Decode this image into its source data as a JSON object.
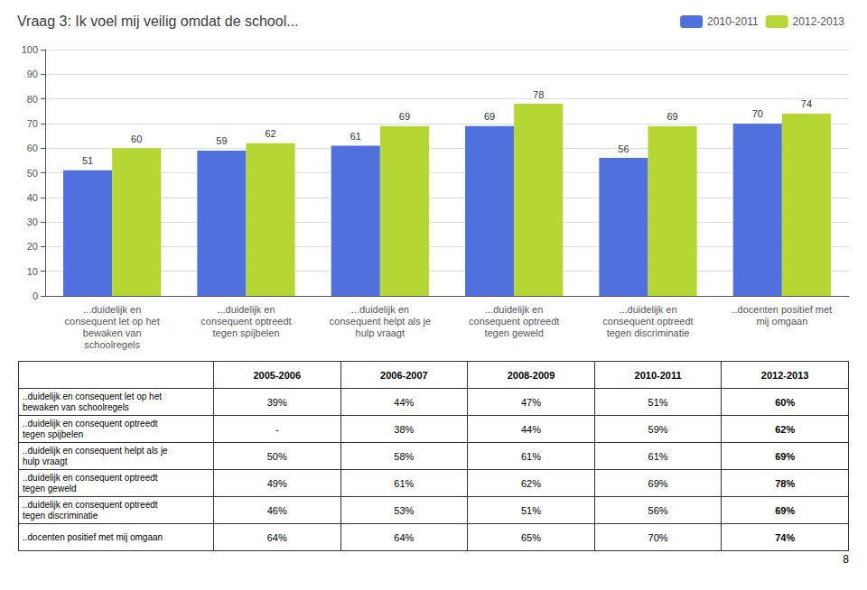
{
  "chart_data": {
    "type": "bar",
    "title": "Vraag 3: Ik voel mij veilig omdat de school...",
    "page_number": "8",
    "categories": [
      "...duidelijk en\nconsequent let op het\nbewaken van\nschoolregels",
      "...duidelijk en\nconsequent optreedt\ntegen spijbelen",
      "...duidelijk en\nconsequent helpt als je\nhulp vraagt",
      "...duidelijk en\nconsequent optreedt\ntegen geweld",
      "...duidelijk en\nconsequent optreedt\ntegen discriminatie",
      "..docenten positief met\nmij omgaan"
    ],
    "series": [
      {
        "name": "2010-2011",
        "values": [
          51,
          59,
          61,
          69,
          56,
          70
        ]
      },
      {
        "name": "2012-2013",
        "values": [
          60,
          62,
          69,
          78,
          69,
          74
        ]
      }
    ],
    "ylim": [
      0,
      100
    ],
    "yticks": [
      0,
      10,
      20,
      30,
      40,
      50,
      60,
      70,
      80,
      90,
      100
    ],
    "grid": true,
    "legend": "upper right",
    "data_labels": true,
    "table": {
      "col_headers": [
        "2005-2006",
        "2006-2007",
        "2008-2009",
        "2010-2011",
        "2012-2013"
      ],
      "rows": [
        "..duidelijk en consequent let op het\nbewaken van schoolregels",
        "..duidelijk en consequent optreedt\ntegen spijbelen",
        "..duidelijk en consequent helpt als je\nhulp vraagt",
        "..duidelijk en consequent optreedt\ntegen geweld",
        "..duidelijk en consequent optreedt\ntegen discriminatie",
        "..docenten positief met mij omgaan"
      ],
      "values": [
        [
          "39%",
          "44%",
          "47%",
          "51%",
          "60%"
        ],
        [
          "-",
          "38%",
          "44%",
          "59%",
          "62%"
        ],
        [
          "50%",
          "58%",
          "61%",
          "61%",
          "69%"
        ],
        [
          "49%",
          "61%",
          "62%",
          "69%",
          "78%"
        ],
        [
          "46%",
          "53%",
          "51%",
          "56%",
          "69%"
        ],
        [
          "64%",
          "64%",
          "65%",
          "70%",
          "74%"
        ]
      ]
    }
  }
}
